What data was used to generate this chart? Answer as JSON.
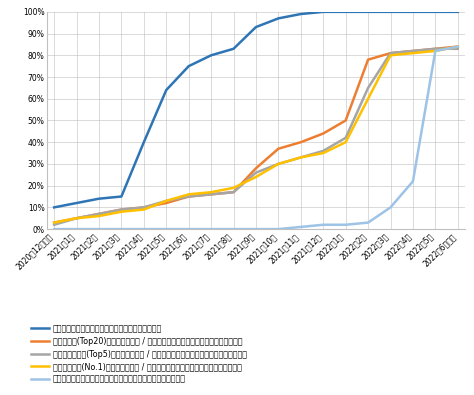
{
  "x_labels": [
    "2020年12月以前",
    "2021年1月",
    "2021年2月",
    "2021年3月",
    "2021年4月",
    "2021年5月",
    "2021年6月",
    "2021年7月",
    "2021年8月",
    "2021年9月",
    "2021年10月",
    "2021年11月",
    "2021年12月",
    "2022年1月",
    "2022年2月",
    "2022年3月",
    "2022年4月",
    "2022年5月",
    "2022年6月以降"
  ],
  "series": [
    {
      "label": "就職活動に取り組み始めた時期を教えてください。",
      "color": "#2E75B6",
      "linewidth": 1.8,
      "values": [
        10,
        12,
        14,
        15,
        40,
        64,
        75,
        80,
        83,
        93,
        97,
        99,
        100,
        100,
        100,
        100,
        100,
        100,
        100
      ]
    },
    {
      "label": "志望企業群(Top20)が決まった時期 / 決めたいと考えている時期を教えて下さい。",
      "color": "#ED7D31",
      "linewidth": 1.8,
      "values": [
        3,
        5,
        7,
        9,
        10,
        12,
        15,
        16,
        17,
        28,
        37,
        40,
        44,
        50,
        78,
        81,
        82,
        83,
        84
      ]
    },
    {
      "label": "第一志望企業群(Top5)が決まった時期 / 決めたいと考えている時期を教えて下さい。",
      "color": "#A5A5A5",
      "linewidth": 1.8,
      "values": [
        2,
        5,
        7,
        9,
        10,
        13,
        15,
        16,
        17,
        26,
        30,
        33,
        36,
        42,
        65,
        81,
        82,
        83,
        83
      ]
    },
    {
      "label": "第一志望企業(No.1)が決まった時期 / 決めたいと考えている時期を教えて下さい。",
      "color": "#FFC000",
      "linewidth": 1.8,
      "values": [
        3,
        5,
        6,
        8,
        9,
        13,
        16,
        17,
        19,
        24,
        30,
        33,
        35,
        40,
        60,
        80,
        81,
        82,
        84
      ]
    },
    {
      "label": "就職活動を終了させたいと考えている時期を教えてください。",
      "color": "#9DC3E6",
      "linewidth": 1.8,
      "values": [
        0,
        0,
        0,
        0,
        0,
        0,
        0,
        0,
        0,
        0,
        0,
        1,
        2,
        2,
        3,
        10,
        22,
        82,
        84
      ]
    }
  ],
  "ylim": [
    0,
    100
  ],
  "yticks": [
    0,
    10,
    20,
    30,
    40,
    50,
    60,
    70,
    80,
    90,
    100
  ],
  "ytick_labels": [
    "0%",
    "10%",
    "20%",
    "30%",
    "40%",
    "50%",
    "60%",
    "70%",
    "80%",
    "90%",
    "100%"
  ],
  "grid_color": "#C0C0C0",
  "bg_color": "#FFFFFF",
  "legend_fontsize": 5.8,
  "tick_fontsize": 5.5
}
